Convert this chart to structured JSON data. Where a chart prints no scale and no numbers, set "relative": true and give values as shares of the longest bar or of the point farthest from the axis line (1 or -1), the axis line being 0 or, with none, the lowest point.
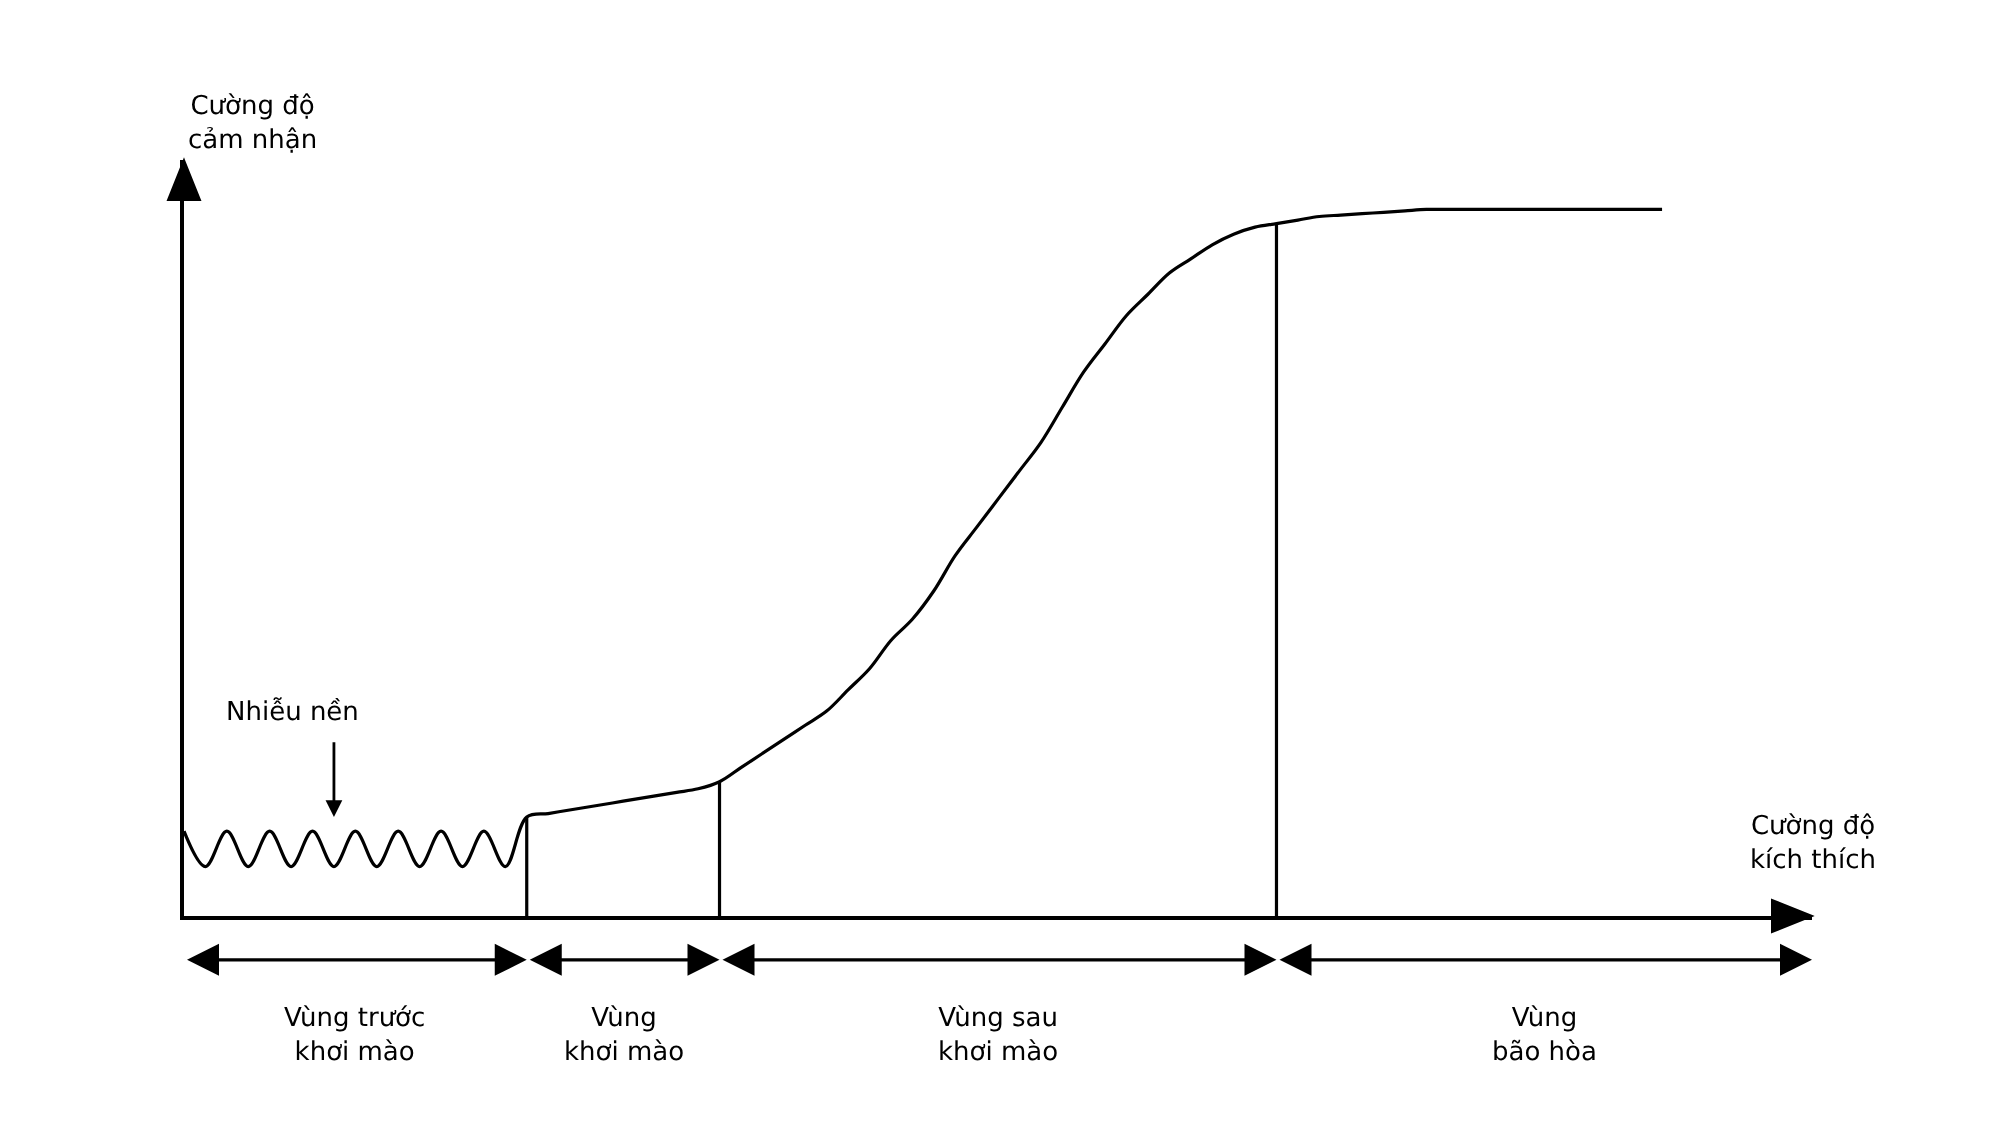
{
  "chart_data": {
    "type": "line",
    "relative": true,
    "xlabel": "Cường độ\nkích thích",
    "ylabel": "Cường độ\ncảm nhận",
    "categories": [
      null,
      null,
      null,
      null,
      null,
      null,
      null,
      null,
      null,
      null,
      null,
      null,
      null,
      null,
      null,
      null,
      null,
      null,
      null,
      null,
      null,
      null,
      null,
      null,
      null,
      null,
      null,
      null,
      null,
      null,
      null,
      null,
      null,
      null,
      null,
      null,
      null,
      null,
      null,
      null,
      null,
      null,
      null,
      null,
      null,
      null,
      null,
      null,
      null,
      null,
      null,
      null,
      null,
      null,
      null,
      null,
      null,
      null,
      null,
      null,
      null,
      null,
      null,
      null,
      null,
      null,
      null,
      null,
      null,
      null,
      null,
      null,
      null,
      null,
      null,
      null,
      null
    ],
    "series": [
      {
        "color": "#000000",
        "values": [
          0.12,
          0.07,
          0.12,
          0.07,
          0.12,
          0.07,
          0.12,
          0.07,
          0.12,
          0.07,
          0.12,
          0.07,
          0.12,
          0.07,
          0.12,
          0.07,
          0.14,
          0.145,
          0.15,
          0.155,
          0.16,
          0.165,
          0.17,
          0.175,
          0.18,
          0.19,
          0.21,
          0.23,
          0.25,
          0.27,
          0.29,
          0.32,
          0.35,
          0.39,
          0.42,
          0.46,
          0.51,
          0.55,
          0.59,
          0.63,
          0.67,
          0.72,
          0.77,
          0.81,
          0.85,
          0.88,
          0.91,
          0.93,
          0.95,
          0.965,
          0.975,
          0.98,
          0.985,
          0.99,
          0.992,
          0.994,
          0.996,
          0.998,
          1,
          1,
          1,
          1,
          1,
          1,
          1,
          1,
          1,
          1,
          1,
          1,
          null,
          null,
          null,
          null,
          null,
          null,
          null
        ]
      }
    ],
    "annotations": [
      "Nhiễu nền",
      "Vùng trước\nkhơi mào",
      "Vùng\nkhơi mào",
      "Vùng sau\nkhơi mào",
      "Vùng\nbão hòa"
    ],
    "line_style": "solid",
    "marker": "none"
  }
}
